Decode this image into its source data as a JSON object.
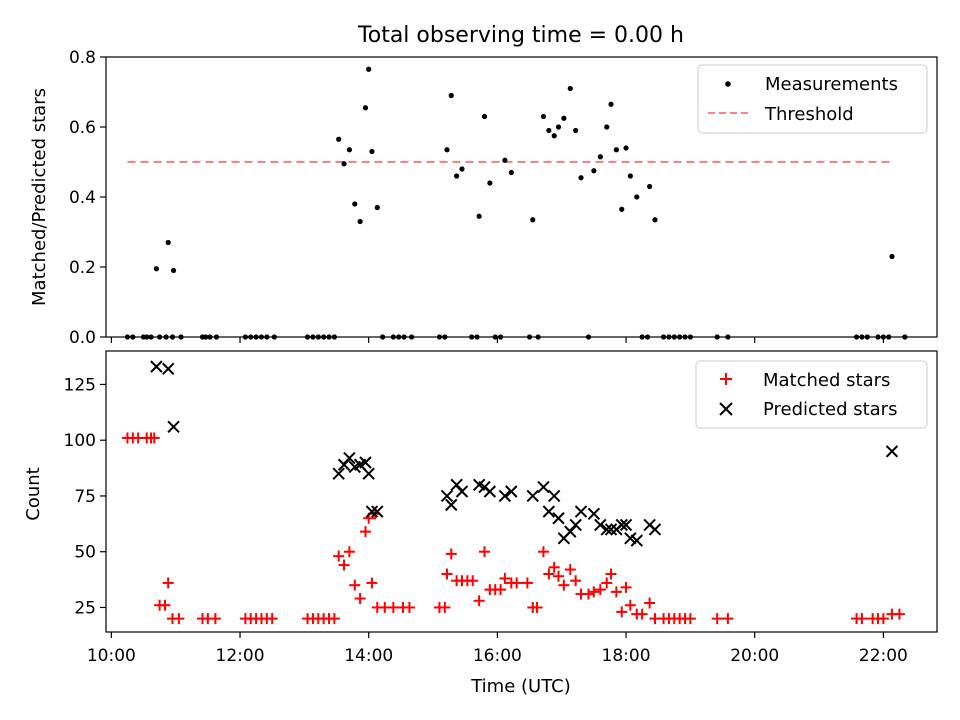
{
  "figure": {
    "title": "Total observing time = 0.00 h",
    "xlabel": "Time (UTC)"
  },
  "chart_data": [
    {
      "type": "scatter",
      "ylabel": "Matched/Predicted stars",
      "xlim": [
        "09:55",
        "22:50"
      ],
      "ylim": [
        0,
        0.8
      ],
      "yticks": [
        0.0,
        0.2,
        0.4,
        0.6,
        0.8
      ],
      "ytick_labels": [
        "0.0",
        "0.2",
        "0.4",
        "0.6",
        "0.8"
      ],
      "legend_position": "top-right",
      "threshold": {
        "name": "Threshold",
        "y": 0.5,
        "x_start": "10:15",
        "x_end": "22:10",
        "color": "#ff8080",
        "style": "dashed"
      },
      "series": [
        {
          "name": "Measurements",
          "color": "#000000",
          "marker": "dot",
          "points": [
            [
              "10:15",
              0
            ],
            [
              "10:20",
              0
            ],
            [
              "10:30",
              0
            ],
            [
              "10:33",
              0
            ],
            [
              "10:37",
              0
            ],
            [
              "10:45",
              0
            ],
            [
              "10:51",
              0
            ],
            [
              "10:57",
              0
            ],
            [
              "11:05",
              0
            ],
            [
              "11:25",
              0
            ],
            [
              "11:28",
              0
            ],
            [
              "11:32",
              0
            ],
            [
              "11:38",
              0
            ],
            [
              "12:05",
              0
            ],
            [
              "12:10",
              0
            ],
            [
              "12:15",
              0
            ],
            [
              "12:20",
              0
            ],
            [
              "12:25",
              0
            ],
            [
              "12:32",
              0
            ],
            [
              "13:03",
              0
            ],
            [
              "13:08",
              0
            ],
            [
              "13:13",
              0
            ],
            [
              "13:18",
              0
            ],
            [
              "13:23",
              0
            ],
            [
              "13:28",
              0
            ],
            [
              "14:13",
              0
            ],
            [
              "14:23",
              0
            ],
            [
              "14:28",
              0
            ],
            [
              "14:33",
              0
            ],
            [
              "14:40",
              0
            ],
            [
              "15:06",
              0
            ],
            [
              "15:11",
              0
            ],
            [
              "15:36",
              0
            ],
            [
              "15:41",
              0
            ],
            [
              "15:58",
              0
            ],
            [
              "16:03",
              0
            ],
            [
              "16:30",
              0
            ],
            [
              "16:38",
              0
            ],
            [
              "17:25",
              0
            ],
            [
              "18:15",
              0
            ],
            [
              "18:20",
              0
            ],
            [
              "18:35",
              0
            ],
            [
              "18:40",
              0
            ],
            [
              "18:45",
              0
            ],
            [
              "18:50",
              0
            ],
            [
              "18:55",
              0
            ],
            [
              "19:00",
              0
            ],
            [
              "19:25",
              0
            ],
            [
              "19:35",
              0
            ],
            [
              "21:35",
              0
            ],
            [
              "21:40",
              0
            ],
            [
              "21:45",
              0
            ],
            [
              "21:55",
              0
            ],
            [
              "22:00",
              0
            ],
            [
              "22:05",
              0
            ],
            [
              "22:20",
              0
            ],
            [
              "10:42",
              0.195
            ],
            [
              "10:53",
              0.27
            ],
            [
              "10:58",
              0.19
            ],
            [
              "13:32",
              0.565
            ],
            [
              "13:37",
              0.495
            ],
            [
              "13:42",
              0.535
            ],
            [
              "13:47",
              0.38
            ],
            [
              "13:52",
              0.33
            ],
            [
              "13:57",
              0.655
            ],
            [
              "14:00",
              0.765
            ],
            [
              "14:03",
              0.53
            ],
            [
              "14:08",
              0.37
            ],
            [
              "15:13",
              0.535
            ],
            [
              "15:17",
              0.69
            ],
            [
              "15:22",
              0.46
            ],
            [
              "15:27",
              0.48
            ],
            [
              "15:43",
              0.345
            ],
            [
              "15:48",
              0.63
            ],
            [
              "15:53",
              0.44
            ],
            [
              "16:07",
              0.505
            ],
            [
              "16:13",
              0.47
            ],
            [
              "16:33",
              0.335
            ],
            [
              "16:43",
              0.63
            ],
            [
              "16:48",
              0.59
            ],
            [
              "16:53",
              0.575
            ],
            [
              "16:57",
              0.6
            ],
            [
              "17:02",
              0.625
            ],
            [
              "17:08",
              0.71
            ],
            [
              "17:13",
              0.59
            ],
            [
              "17:18",
              0.455
            ],
            [
              "17:30",
              0.475
            ],
            [
              "17:36",
              0.515
            ],
            [
              "17:42",
              0.6
            ],
            [
              "17:46",
              0.665
            ],
            [
              "17:51",
              0.535
            ],
            [
              "17:56",
              0.365
            ],
            [
              "18:00",
              0.54
            ],
            [
              "18:04",
              0.46
            ],
            [
              "18:10",
              0.4
            ],
            [
              "18:22",
              0.43
            ],
            [
              "18:27",
              0.335
            ],
            [
              "22:08",
              0.23
            ]
          ]
        }
      ]
    },
    {
      "type": "scatter",
      "ylabel": "Count",
      "xlim": [
        "09:55",
        "22:50"
      ],
      "ylim": [
        14,
        140
      ],
      "yticks": [
        25,
        50,
        75,
        100,
        125
      ],
      "ytick_labels": [
        "25",
        "50",
        "75",
        "100",
        "125"
      ],
      "xticks": [
        "10:00",
        "12:00",
        "14:00",
        "16:00",
        "18:00",
        "20:00",
        "22:00"
      ],
      "xtick_labels": [
        "10:00",
        "12:00",
        "14:00",
        "16:00",
        "18:00",
        "20:00",
        "22:00"
      ],
      "legend_position": "top-right",
      "series": [
        {
          "name": "Matched stars",
          "color": "#ff0000",
          "marker": "plus",
          "points": [
            [
              "10:15",
              101
            ],
            [
              "10:20",
              101
            ],
            [
              "10:25",
              101
            ],
            [
              "10:33",
              101
            ],
            [
              "10:37",
              101
            ],
            [
              "10:40",
              101
            ],
            [
              "10:45",
              26
            ],
            [
              "10:50",
              26
            ],
            [
              "10:53",
              36
            ],
            [
              "10:57",
              20
            ],
            [
              "11:03",
              20
            ],
            [
              "11:25",
              20
            ],
            [
              "11:30",
              20
            ],
            [
              "11:37",
              20
            ],
            [
              "12:05",
              20
            ],
            [
              "12:10",
              20
            ],
            [
              "12:15",
              20
            ],
            [
              "12:20",
              20
            ],
            [
              "12:25",
              20
            ],
            [
              "12:30",
              20
            ],
            [
              "13:03",
              20
            ],
            [
              "13:08",
              20
            ],
            [
              "13:13",
              20
            ],
            [
              "13:18",
              20
            ],
            [
              "13:23",
              20
            ],
            [
              "13:28",
              20
            ],
            [
              "13:32",
              48
            ],
            [
              "13:37",
              44
            ],
            [
              "13:42",
              50
            ],
            [
              "13:47",
              35
            ],
            [
              "13:52",
              29
            ],
            [
              "13:57",
              59
            ],
            [
              "14:00",
              65
            ],
            [
              "14:03",
              36
            ],
            [
              "14:06",
              67
            ],
            [
              "14:08",
              25
            ],
            [
              "14:15",
              25
            ],
            [
              "14:23",
              25
            ],
            [
              "14:32",
              25
            ],
            [
              "14:38",
              25
            ],
            [
              "15:06",
              25
            ],
            [
              "15:11",
              25
            ],
            [
              "15:13",
              40
            ],
            [
              "15:17",
              49
            ],
            [
              "15:22",
              37
            ],
            [
              "15:27",
              37
            ],
            [
              "15:32",
              37
            ],
            [
              "15:37",
              37
            ],
            [
              "15:43",
              28
            ],
            [
              "15:48",
              50
            ],
            [
              "15:53",
              33
            ],
            [
              "15:58",
              33
            ],
            [
              "16:03",
              33
            ],
            [
              "16:07",
              38
            ],
            [
              "16:13",
              36
            ],
            [
              "16:18",
              36
            ],
            [
              "16:28",
              36
            ],
            [
              "16:33",
              25
            ],
            [
              "16:37",
              25
            ],
            [
              "16:43",
              50
            ],
            [
              "16:48",
              40
            ],
            [
              "16:53",
              43
            ],
            [
              "16:57",
              39
            ],
            [
              "17:02",
              35
            ],
            [
              "17:08",
              42
            ],
            [
              "17:13",
              37
            ],
            [
              "17:18",
              31
            ],
            [
              "17:25",
              31
            ],
            [
              "17:30",
              32
            ],
            [
              "17:36",
              33
            ],
            [
              "17:42",
              36
            ],
            [
              "17:46",
              40
            ],
            [
              "17:51",
              32
            ],
            [
              "17:56",
              23
            ],
            [
              "18:00",
              34
            ],
            [
              "18:04",
              26
            ],
            [
              "18:10",
              22
            ],
            [
              "18:15",
              22
            ],
            [
              "18:22",
              27
            ],
            [
              "18:27",
              20
            ],
            [
              "18:35",
              20
            ],
            [
              "18:40",
              20
            ],
            [
              "18:45",
              20
            ],
            [
              "18:50",
              20
            ],
            [
              "18:55",
              20
            ],
            [
              "19:00",
              20
            ],
            [
              "19:25",
              20
            ],
            [
              "19:35",
              20
            ],
            [
              "21:35",
              20
            ],
            [
              "21:40",
              20
            ],
            [
              "21:50",
              20
            ],
            [
              "21:55",
              20
            ],
            [
              "22:00",
              20
            ],
            [
              "22:08",
              22
            ],
            [
              "22:15",
              22
            ]
          ]
        },
        {
          "name": "Predicted stars",
          "color": "#000000",
          "marker": "x",
          "points": [
            [
              "10:42",
              133
            ],
            [
              "10:53",
              132
            ],
            [
              "10:58",
              106
            ],
            [
              "13:32",
              85
            ],
            [
              "13:37",
              89
            ],
            [
              "13:42",
              92
            ],
            [
              "13:47",
              88
            ],
            [
              "13:52",
              89
            ],
            [
              "13:57",
              90
            ],
            [
              "14:00",
              85
            ],
            [
              "14:03",
              68
            ],
            [
              "14:08",
              68
            ],
            [
              "15:13",
              75
            ],
            [
              "15:17",
              71
            ],
            [
              "15:22",
              80
            ],
            [
              "15:27",
              77
            ],
            [
              "15:43",
              80
            ],
            [
              "15:48",
              79
            ],
            [
              "15:53",
              77
            ],
            [
              "16:07",
              75
            ],
            [
              "16:13",
              77
            ],
            [
              "16:33",
              75
            ],
            [
              "16:43",
              79
            ],
            [
              "16:48",
              68
            ],
            [
              "16:53",
              75
            ],
            [
              "16:57",
              65
            ],
            [
              "17:02",
              56
            ],
            [
              "17:08",
              59
            ],
            [
              "17:13",
              62
            ],
            [
              "17:18",
              68
            ],
            [
              "17:30",
              67
            ],
            [
              "17:36",
              62
            ],
            [
              "17:42",
              60
            ],
            [
              "17:46",
              60
            ],
            [
              "17:51",
              60
            ],
            [
              "17:56",
              62
            ],
            [
              "18:00",
              62
            ],
            [
              "18:04",
              56
            ],
            [
              "18:10",
              55
            ],
            [
              "18:22",
              62
            ],
            [
              "18:27",
              60
            ],
            [
              "22:08",
              95
            ]
          ]
        }
      ]
    }
  ]
}
